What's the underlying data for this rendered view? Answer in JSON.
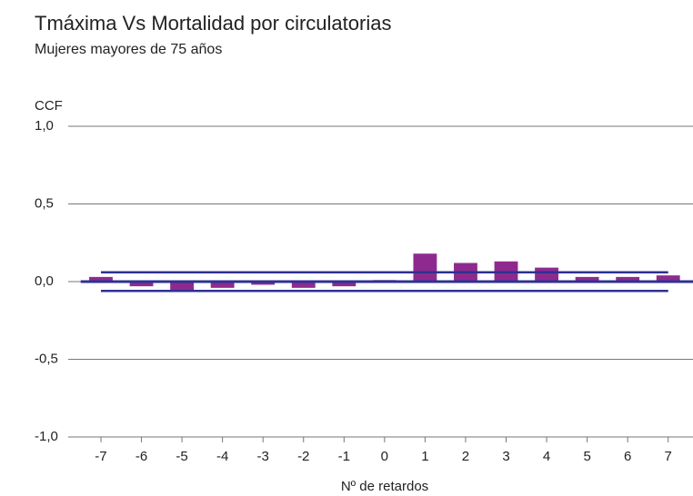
{
  "chart_data": {
    "type": "bar",
    "title": "Tmáxima Vs Mortalidad por circulatorias",
    "subtitle": "Mujeres mayores de 75 años",
    "y_axis_label": "CCF",
    "x_axis_label": "Nº de retardos",
    "categories": [
      "-7",
      "-6",
      "-5",
      "-4",
      "-3",
      "-2",
      "-1",
      "0",
      "1",
      "2",
      "3",
      "4",
      "5",
      "6",
      "7"
    ],
    "values": [
      0.03,
      -0.03,
      -0.06,
      -0.04,
      -0.02,
      -0.04,
      -0.03,
      0.01,
      0.18,
      0.12,
      0.13,
      0.09,
      0.03,
      0.03,
      0.04
    ],
    "color": "#8e2a8f",
    "confidence_limits": [
      0.06,
      -0.06
    ],
    "confidence_color": "#2e3192",
    "ylim": [
      -1,
      1
    ],
    "yticks": [
      {
        "value": -1,
        "label": "-1,0"
      },
      {
        "value": -0.5,
        "label": "-0,5"
      },
      {
        "value": 0,
        "label": "0,0"
      },
      {
        "value": 0.5,
        "label": "0,5"
      },
      {
        "value": 1,
        "label": "1,0"
      }
    ],
    "grid": true
  }
}
